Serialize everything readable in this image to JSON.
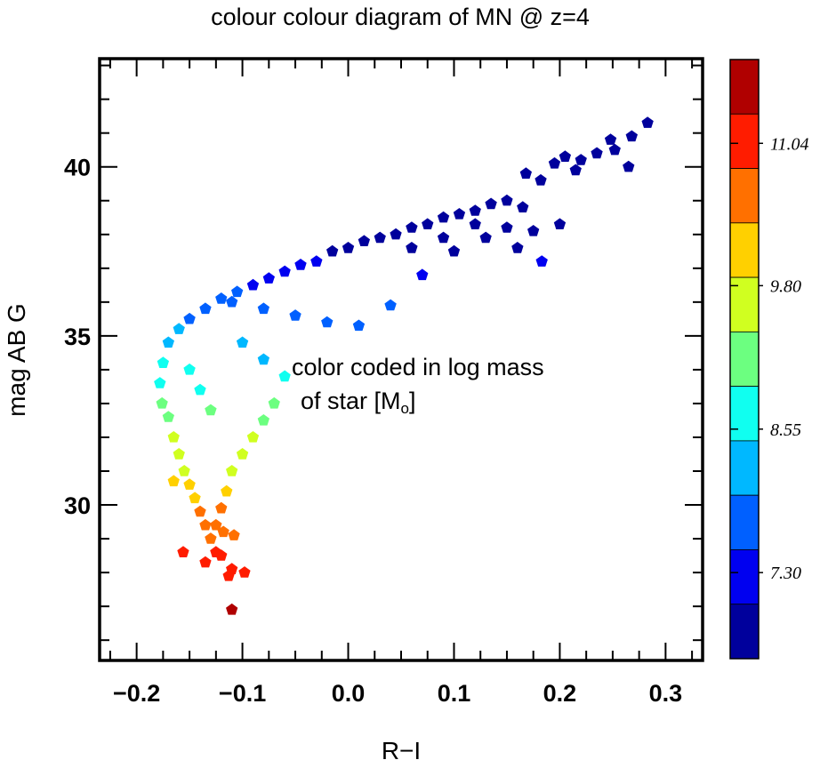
{
  "chart_data": {
    "type": "scatter",
    "title": "colour colour diagram of MN @ z=4",
    "xlabel": "R−I",
    "ylabel": "mag AB G",
    "xlim": [
      -0.235,
      0.335
    ],
    "ylim": [
      25.4,
      43.2
    ],
    "x_ticks": [
      "−0.2",
      "−0.1",
      "0.0",
      "0.1",
      "0.2",
      "0.3"
    ],
    "x_tick_values": [
      -0.2,
      -0.1,
      0.0,
      0.1,
      0.2,
      0.3
    ],
    "y_ticks": [
      "30",
      "35",
      "40"
    ],
    "y_tick_values": [
      30,
      35,
      40
    ],
    "annotation": {
      "line1": "color coded in log mass",
      "line2_prefix": "of star [M",
      "line2_sub": "o",
      "line2_suffix": "]"
    },
    "colorbar": {
      "range": [
        6.55,
        11.77
      ],
      "tick_labels": [
        "7.30",
        "8.55",
        "9.80",
        "11.04"
      ],
      "tick_values": [
        7.3,
        8.55,
        9.8,
        11.04
      ],
      "colors": [
        "#00009c",
        "#0000f0",
        "#0060ff",
        "#00b8ff",
        "#10fff0",
        "#6cff80",
        "#d0ff20",
        "#ffd000",
        "#ff7000",
        "#ff1c00",
        "#b00000"
      ]
    },
    "points": [
      [
        0.283,
        41.3
      ],
      [
        0.268,
        40.9
      ],
      [
        0.252,
        40.5
      ],
      [
        0.265,
        40.0
      ],
      [
        0.248,
        40.8
      ],
      [
        0.235,
        40.4
      ],
      [
        0.22,
        40.2
      ],
      [
        0.205,
        40.3
      ],
      [
        0.215,
        39.9
      ],
      [
        0.195,
        40.1
      ],
      [
        0.182,
        39.6
      ],
      [
        0.168,
        39.8
      ],
      [
        0.2,
        38.3
      ],
      [
        0.183,
        37.2
      ],
      [
        0.165,
        38.8
      ],
      [
        0.15,
        39.0
      ],
      [
        0.135,
        38.9
      ],
      [
        0.12,
        38.7
      ],
      [
        0.105,
        38.6
      ],
      [
        0.09,
        38.5
      ],
      [
        0.075,
        38.3
      ],
      [
        0.06,
        38.2
      ],
      [
        0.045,
        38.0
      ],
      [
        0.03,
        37.9
      ],
      [
        0.015,
        37.8
      ],
      [
        0.0,
        37.6
      ],
      [
        -0.015,
        37.5
      ],
      [
        -0.03,
        37.2
      ],
      [
        -0.045,
        37.1
      ],
      [
        -0.06,
        36.9
      ],
      [
        -0.075,
        36.7
      ],
      [
        -0.09,
        36.5
      ],
      [
        -0.105,
        36.3
      ],
      [
        -0.12,
        36.1
      ],
      [
        -0.135,
        35.8
      ],
      [
        -0.15,
        35.5
      ],
      [
        -0.16,
        35.2
      ],
      [
        -0.17,
        34.8
      ],
      [
        -0.175,
        34.2
      ],
      [
        -0.178,
        33.6
      ],
      [
        -0.176,
        33.0
      ],
      [
        -0.17,
        32.6
      ],
      [
        -0.165,
        32.0
      ],
      [
        -0.16,
        31.5
      ],
      [
        -0.155,
        31.0
      ],
      [
        -0.15,
        30.6
      ],
      [
        -0.145,
        30.2
      ],
      [
        -0.14,
        29.8
      ],
      [
        -0.135,
        29.4
      ],
      [
        -0.13,
        29.0
      ],
      [
        -0.125,
        28.6
      ],
      [
        -0.135,
        28.3
      ],
      [
        -0.12,
        28.5
      ],
      [
        -0.11,
        28.1
      ],
      [
        -0.098,
        28.0
      ],
      [
        -0.113,
        27.9
      ],
      [
        -0.156,
        28.6
      ],
      [
        -0.11,
        26.9
      ],
      [
        -0.165,
        30.7
      ],
      [
        -0.11,
        36.0
      ],
      [
        -0.08,
        35.8
      ],
      [
        -0.05,
        35.6
      ],
      [
        -0.02,
        35.4
      ],
      [
        0.01,
        35.3
      ],
      [
        0.04,
        35.9
      ],
      [
        0.07,
        36.8
      ],
      [
        0.1,
        37.5
      ],
      [
        0.13,
        37.9
      ],
      [
        -0.1,
        34.8
      ],
      [
        -0.08,
        34.3
      ],
      [
        -0.06,
        33.8
      ],
      [
        -0.07,
        33.0
      ],
      [
        -0.08,
        32.5
      ],
      [
        -0.09,
        32.0
      ],
      [
        -0.1,
        31.5
      ],
      [
        -0.11,
        31.0
      ],
      [
        -0.115,
        30.4
      ],
      [
        -0.12,
        29.9
      ],
      [
        -0.125,
        29.4
      ],
      [
        -0.118,
        29.2
      ],
      [
        -0.108,
        29.1
      ],
      [
        -0.13,
        32.8
      ],
      [
        -0.14,
        33.4
      ],
      [
        -0.15,
        34.0
      ],
      [
        0.16,
        37.6
      ],
      [
        0.175,
        38.1
      ],
      [
        0.15,
        38.2
      ],
      [
        0.12,
        38.3
      ],
      [
        0.09,
        37.9
      ],
      [
        0.06,
        37.6
      ]
    ]
  }
}
